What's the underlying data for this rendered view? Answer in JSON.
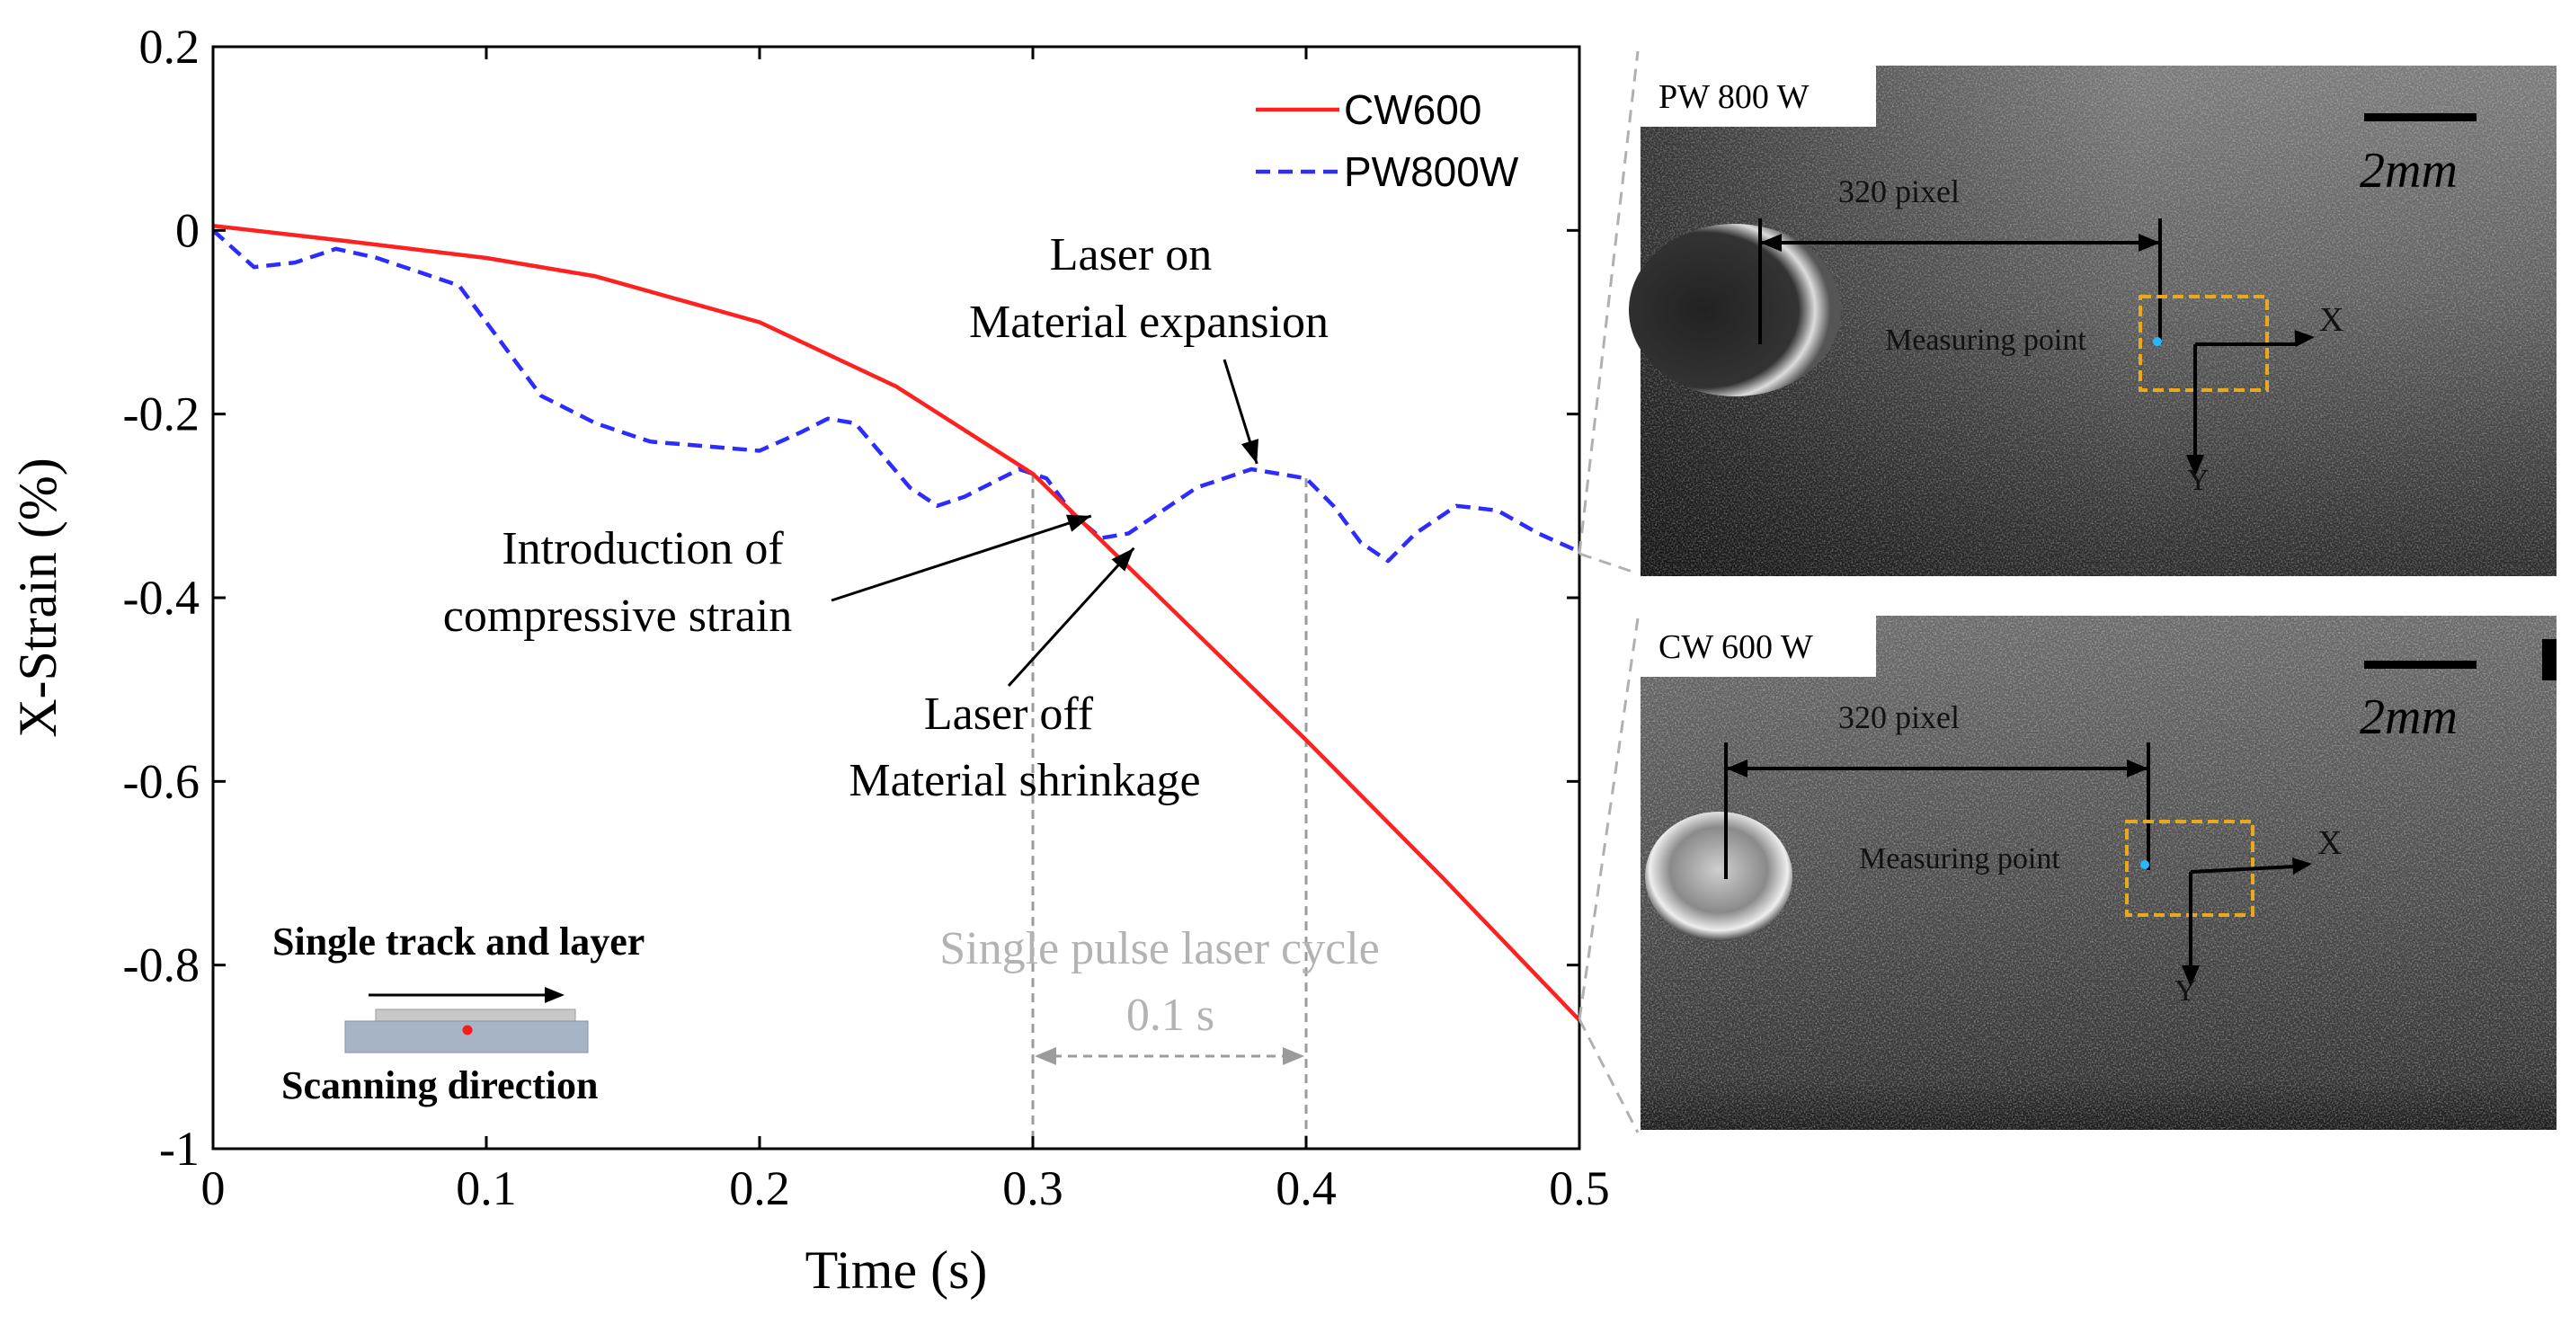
{
  "chart_data": {
    "type": "line",
    "xlabel": "Time (s)",
    "ylabel": "X-Strain (%)",
    "xlim": [
      0,
      0.5
    ],
    "ylim": [
      -1,
      0.2
    ],
    "xticks": [
      "0",
      "0.1",
      "0.2",
      "0.3",
      "0.4",
      "0.5"
    ],
    "yticks": [
      "0.2",
      "0",
      "-0.2",
      "-0.4",
      "-0.6",
      "-0.8",
      "-1"
    ],
    "xtick_values": [
      0,
      0.1,
      0.2,
      0.3,
      0.4,
      0.5
    ],
    "ytick_values": [
      0.2,
      0,
      -0.2,
      -0.4,
      -0.6,
      -0.8,
      -1
    ],
    "legend_position": "top-right",
    "series": [
      {
        "name": "CW600",
        "color": "#ff2020",
        "style": "solid",
        "x": [
          0,
          0.05,
          0.1,
          0.14,
          0.2,
          0.25,
          0.3,
          0.35,
          0.4,
          0.45,
          0.5
        ],
        "y": [
          0.005,
          -0.012,
          -0.03,
          -0.05,
          -0.1,
          -0.17,
          -0.265,
          -0.41,
          -0.555,
          -0.705,
          -0.86
        ]
      },
      {
        "name": "PW800W",
        "color": "#2c2cff",
        "style": "dashed",
        "x": [
          0,
          0.015,
          0.03,
          0.045,
          0.06,
          0.075,
          0.09,
          0.1,
          0.11,
          0.12,
          0.14,
          0.16,
          0.18,
          0.2,
          0.215,
          0.225,
          0.235,
          0.245,
          0.255,
          0.265,
          0.275,
          0.285,
          0.295,
          0.305,
          0.315,
          0.325,
          0.335,
          0.345,
          0.36,
          0.38,
          0.4,
          0.41,
          0.42,
          0.43,
          0.44,
          0.455,
          0.47,
          0.485,
          0.5
        ],
        "y": [
          0,
          -0.04,
          -0.035,
          -0.02,
          -0.03,
          -0.045,
          -0.06,
          -0.1,
          -0.14,
          -0.18,
          -0.21,
          -0.23,
          -0.235,
          -0.24,
          -0.22,
          -0.205,
          -0.21,
          -0.245,
          -0.28,
          -0.3,
          -0.29,
          -0.275,
          -0.26,
          -0.27,
          -0.31,
          -0.335,
          -0.33,
          -0.31,
          -0.28,
          -0.26,
          -0.27,
          -0.3,
          -0.34,
          -0.36,
          -0.33,
          -0.3,
          -0.305,
          -0.33,
          -0.35
        ]
      }
    ],
    "annotations": {
      "laser_on_line1": "Laser on",
      "laser_on_line2": "Material expansion",
      "compressive_line1": "Introduction of",
      "compressive_line2": "compressive strain",
      "laser_off_line1": "Laser off",
      "laser_off_line2": "Material shrinkage",
      "cycle_line1": "Single pulse laser cycle",
      "cycle_line2": "0.1 s"
    },
    "cycle_range": [
      0.3,
      0.4
    ],
    "laser_on_point": [
      0.38,
      -0.26
    ],
    "compressive_point": [
      0.32,
      -0.31
    ],
    "laser_off_point": [
      0.335,
      -0.34
    ]
  },
  "inset": {
    "track_label": "Single track and layer",
    "scan_label": "Scanning direction"
  },
  "panels": [
    {
      "label": "PW 800 W",
      "scale": "2mm",
      "distance": "320 pixel",
      "point": "Measuring point",
      "axis_x": "X",
      "axis_y": "Y"
    },
    {
      "label": "CW 600 W",
      "scale": "2mm",
      "distance": "320 pixel",
      "point": "Measuring point",
      "axis_x": "X",
      "axis_y": "Y"
    }
  ]
}
